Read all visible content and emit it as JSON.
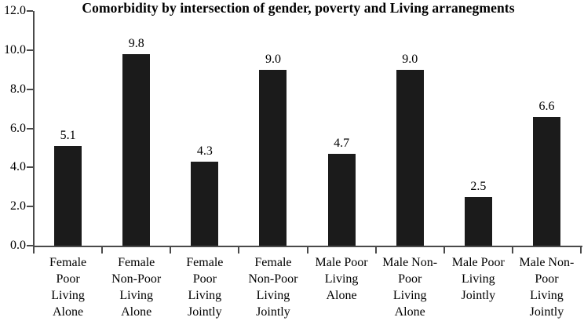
{
  "chart_data": {
    "type": "bar",
    "title": "Comorbidity by intersection of gender, poverty and Living arranegments",
    "categories": [
      "Female\nPoor\nLiving\nAlone",
      "Female\nNon-Poor\nLiving\nAlone",
      "Female\nPoor\nLiving\nJointly",
      "Female\nNon-Poor\nLiving\nJointly",
      "Male Poor\nLiving\nAlone",
      "Male Non-\nPoor\nLiving\nAlone",
      "Male Poor\nLiving\nJointly",
      "Male Non-\nPoor\nLiving\nJointly"
    ],
    "values": [
      5.1,
      9.8,
      4.3,
      9.0,
      4.7,
      9.0,
      2.5,
      6.6
    ],
    "bar_labels": [
      "5.1",
      "9.8",
      "4.3",
      "9.0",
      "4.7",
      "9.0",
      "2.5",
      "6.6"
    ],
    "xlabel": "",
    "ylabel": "",
    "ylim": [
      0,
      12
    ],
    "yticks": [
      12,
      10,
      8,
      6,
      4,
      2,
      0
    ],
    "ytick_labels": [
      "12.0",
      "10.0",
      "8.0",
      "6.0",
      "4.0",
      "2.0",
      "0.0"
    ],
    "grid": false,
    "legend": false,
    "bar_color": "#1b1b1b",
    "axis_color": "#4a4a4a",
    "text_color": "#000000",
    "background_color": "#ffffff"
  }
}
